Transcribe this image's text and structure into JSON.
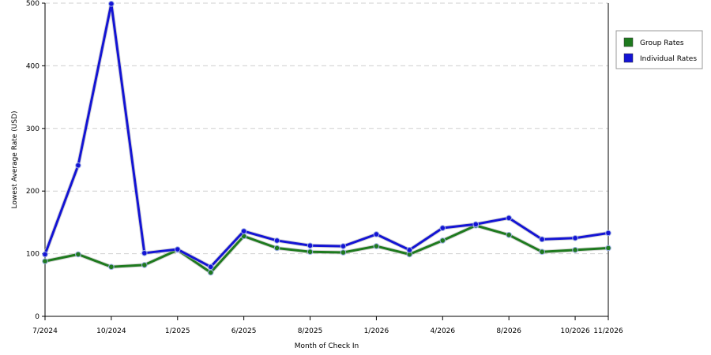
{
  "chart_data": {
    "type": "line",
    "title": "",
    "xlabel": "Month of Check In",
    "ylabel": "Lowest Average Rate (USD)",
    "ylim": [
      0,
      500
    ],
    "yticks": [
      0,
      100,
      200,
      300,
      400,
      500
    ],
    "grid": "horizontal dashed",
    "legend_position": "right",
    "x_tick_labels": [
      "7/2024",
      "10/2024",
      "1/2025",
      "6/2025",
      "8/2025",
      "1/2026",
      "4/2026",
      "8/2026",
      "10/2026",
      "11/2026"
    ],
    "x_tick_index": [
      0,
      2,
      4,
      6,
      8,
      10,
      12,
      14,
      16,
      17
    ],
    "point_count": 18,
    "series": [
      {
        "name": "Group Rates",
        "color": "#1e7a1e",
        "values": [
          88,
          99,
          79,
          82,
          106,
          70,
          128,
          109,
          103,
          102,
          112,
          99,
          121,
          145,
          130,
          103,
          106,
          109
        ]
      },
      {
        "name": "Individual Rates",
        "color": "#1414d4",
        "values": [
          99,
          241,
          499,
          101,
          107,
          79,
          136,
          121,
          113,
          112,
          131,
          106,
          141,
          147,
          157,
          123,
          125,
          133
        ]
      }
    ]
  }
}
